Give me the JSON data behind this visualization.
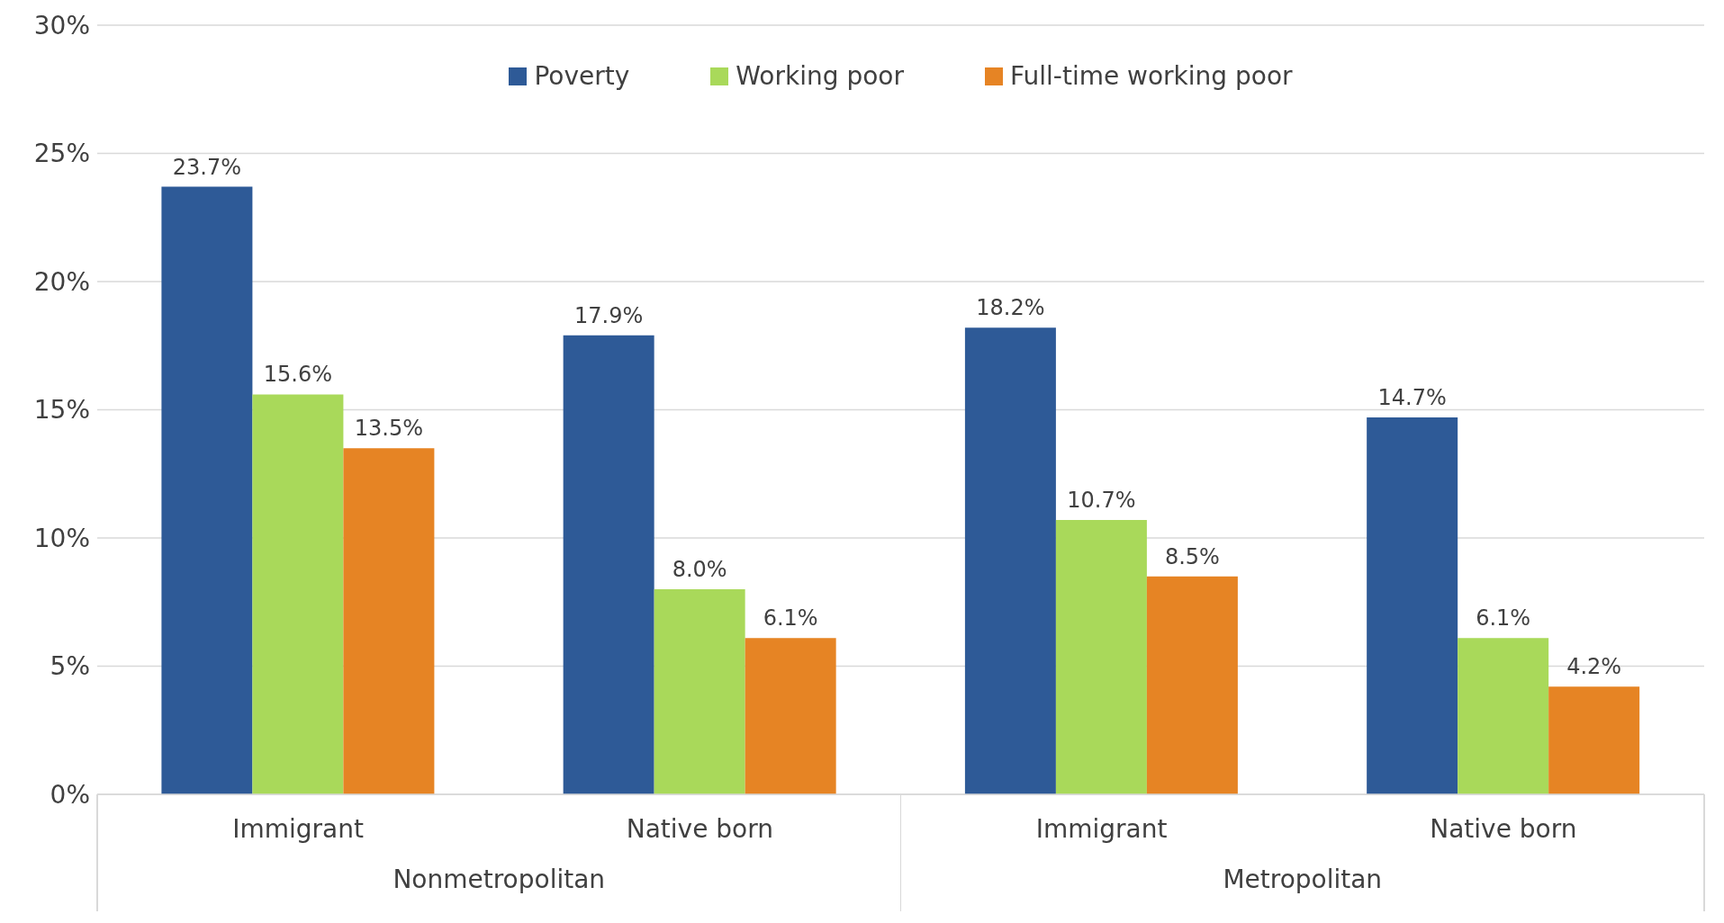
{
  "chart_data": {
    "type": "bar",
    "categories": [
      "Immigrant",
      "Native born",
      "Immigrant",
      "Native born"
    ],
    "annotations": [
      "Nonmetropolitan",
      "Metropolitan"
    ],
    "series": [
      {
        "name": "Poverty",
        "color": "#2e5a97",
        "values": [
          23.7,
          17.9,
          18.2,
          14.7
        ],
        "value_labels": [
          "23.7%",
          "17.9%",
          "18.2%",
          "14.7%"
        ]
      },
      {
        "name": "Working poor",
        "color": "#a9d95a",
        "values": [
          15.6,
          8.0,
          10.7,
          6.1
        ],
        "value_labels": [
          "15.6%",
          "8.0%",
          "10.7%",
          "6.1%"
        ]
      },
      {
        "name": "Full-time working poor",
        "color": "#e68424",
        "values": [
          13.5,
          6.1,
          8.5,
          4.2
        ],
        "value_labels": [
          "13.5%",
          "6.1%",
          "8.5%",
          "4.2%"
        ]
      }
    ],
    "ylim": [
      0,
      30
    ],
    "yticks": [
      {
        "value": 0,
        "label": "0%"
      },
      {
        "value": 5,
        "label": "5%"
      },
      {
        "value": 10,
        "label": "10%"
      },
      {
        "value": 15,
        "label": "15%"
      },
      {
        "value": 20,
        "label": "20%"
      },
      {
        "value": 25,
        "label": "25%"
      },
      {
        "value": 30,
        "label": "30%"
      }
    ],
    "grid": "y",
    "legend": "top"
  }
}
